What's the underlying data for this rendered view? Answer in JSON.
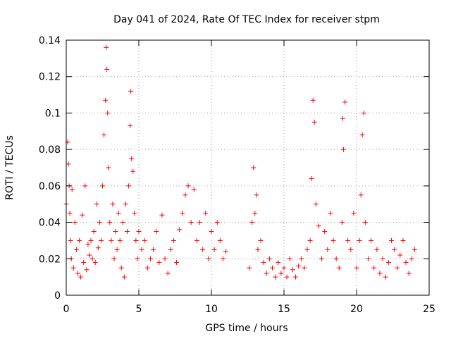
{
  "chart_data": {
    "type": "scatter",
    "title": "Day 041 of 2024, Rate Of TEC Index for receiver stpm",
    "xlabel": "GPS time / hours",
    "ylabel": "ROTI / TECUs",
    "xlim": [
      0,
      25
    ],
    "ylim": [
      0,
      0.14
    ],
    "xticks": [
      0,
      5,
      10,
      15,
      20,
      25
    ],
    "xtick_labels": [
      "0",
      "5",
      "10",
      "15",
      "20",
      "25"
    ],
    "yticks": [
      0,
      0.02,
      0.04,
      0.06,
      0.08,
      0.1,
      0.12,
      0.14
    ],
    "ytick_labels": [
      "0",
      "0.02",
      "0.04",
      "0.06",
      "0.08",
      "0.1",
      "0.12",
      "0.14"
    ],
    "grid": true,
    "marker": "+",
    "series": [
      {
        "name": "ROTI",
        "color": "#ff0000",
        "x": [
          0.0,
          0.1,
          0.15,
          0.2,
          0.25,
          0.3,
          0.35,
          0.4,
          0.5,
          0.6,
          0.7,
          0.8,
          0.9,
          1.0,
          1.1,
          1.2,
          1.3,
          1.4,
          1.5,
          1.6,
          1.7,
          1.8,
          1.9,
          2.0,
          2.1,
          2.2,
          2.3,
          2.4,
          2.5,
          2.6,
          2.7,
          2.75,
          2.8,
          2.85,
          2.9,
          3.0,
          3.1,
          3.2,
          3.3,
          3.4,
          3.5,
          3.6,
          3.7,
          3.8,
          3.9,
          4.0,
          4.1,
          4.2,
          4.3,
          4.4,
          4.45,
          4.5,
          4.6,
          4.7,
          4.8,
          4.9,
          5.0,
          5.2,
          5.4,
          5.6,
          5.8,
          6.0,
          6.2,
          6.4,
          6.6,
          6.8,
          7.0,
          7.2,
          7.4,
          7.6,
          7.8,
          8.0,
          8.2,
          8.4,
          8.6,
          8.8,
          9.0,
          9.2,
          9.4,
          9.6,
          9.8,
          10.0,
          10.2,
          10.4,
          10.6,
          10.8,
          11.0,
          12.6,
          12.8,
          12.9,
          13.0,
          13.1,
          13.2,
          13.4,
          13.6,
          13.8,
          14.0,
          14.2,
          14.4,
          14.6,
          14.8,
          15.0,
          15.2,
          15.4,
          15.6,
          15.8,
          16.0,
          16.2,
          16.4,
          16.6,
          16.8,
          16.9,
          17.0,
          17.1,
          17.2,
          17.4,
          17.6,
          17.8,
          18.0,
          18.2,
          18.4,
          18.6,
          18.8,
          19.0,
          19.05,
          19.1,
          19.2,
          19.4,
          19.6,
          19.8,
          20.0,
          20.2,
          20.3,
          20.4,
          20.5,
          20.6,
          20.8,
          21.0,
          21.2,
          21.4,
          21.6,
          21.8,
          22.0,
          22.2,
          22.4,
          22.6,
          22.8,
          23.0,
          23.2,
          23.4,
          23.6,
          23.8,
          24.0
        ],
        "y": [
          0.05,
          0.084,
          0.072,
          0.06,
          0.045,
          0.03,
          0.02,
          0.058,
          0.015,
          0.04,
          0.025,
          0.012,
          0.03,
          0.01,
          0.044,
          0.018,
          0.06,
          0.014,
          0.028,
          0.022,
          0.03,
          0.02,
          0.035,
          0.018,
          0.05,
          0.026,
          0.04,
          0.03,
          0.06,
          0.088,
          0.107,
          0.136,
          0.124,
          0.1,
          0.07,
          0.04,
          0.03,
          0.05,
          0.02,
          0.035,
          0.025,
          0.045,
          0.03,
          0.015,
          0.04,
          0.01,
          0.05,
          0.035,
          0.06,
          0.093,
          0.112,
          0.075,
          0.068,
          0.045,
          0.03,
          0.02,
          0.035,
          0.025,
          0.03,
          0.015,
          0.02,
          0.025,
          0.035,
          0.018,
          0.044,
          0.02,
          0.012,
          0.025,
          0.03,
          0.018,
          0.036,
          0.045,
          0.055,
          0.06,
          0.04,
          0.058,
          0.03,
          0.04,
          0.025,
          0.045,
          0.02,
          0.035,
          0.025,
          0.04,
          0.03,
          0.02,
          0.024,
          0.015,
          0.04,
          0.07,
          0.045,
          0.055,
          0.025,
          0.03,
          0.018,
          0.012,
          0.02,
          0.015,
          0.01,
          0.018,
          0.012,
          0.015,
          0.01,
          0.02,
          0.014,
          0.01,
          0.016,
          0.02,
          0.015,
          0.025,
          0.03,
          0.064,
          0.107,
          0.095,
          0.05,
          0.038,
          0.02,
          0.035,
          0.025,
          0.045,
          0.03,
          0.02,
          0.015,
          0.04,
          0.097,
          0.08,
          0.106,
          0.03,
          0.025,
          0.045,
          0.015,
          0.03,
          0.055,
          0.088,
          0.1,
          0.04,
          0.02,
          0.03,
          0.015,
          0.025,
          0.012,
          0.02,
          0.01,
          0.018,
          0.03,
          0.025,
          0.015,
          0.022,
          0.03,
          0.018,
          0.012,
          0.02,
          0.025
        ]
      }
    ]
  }
}
